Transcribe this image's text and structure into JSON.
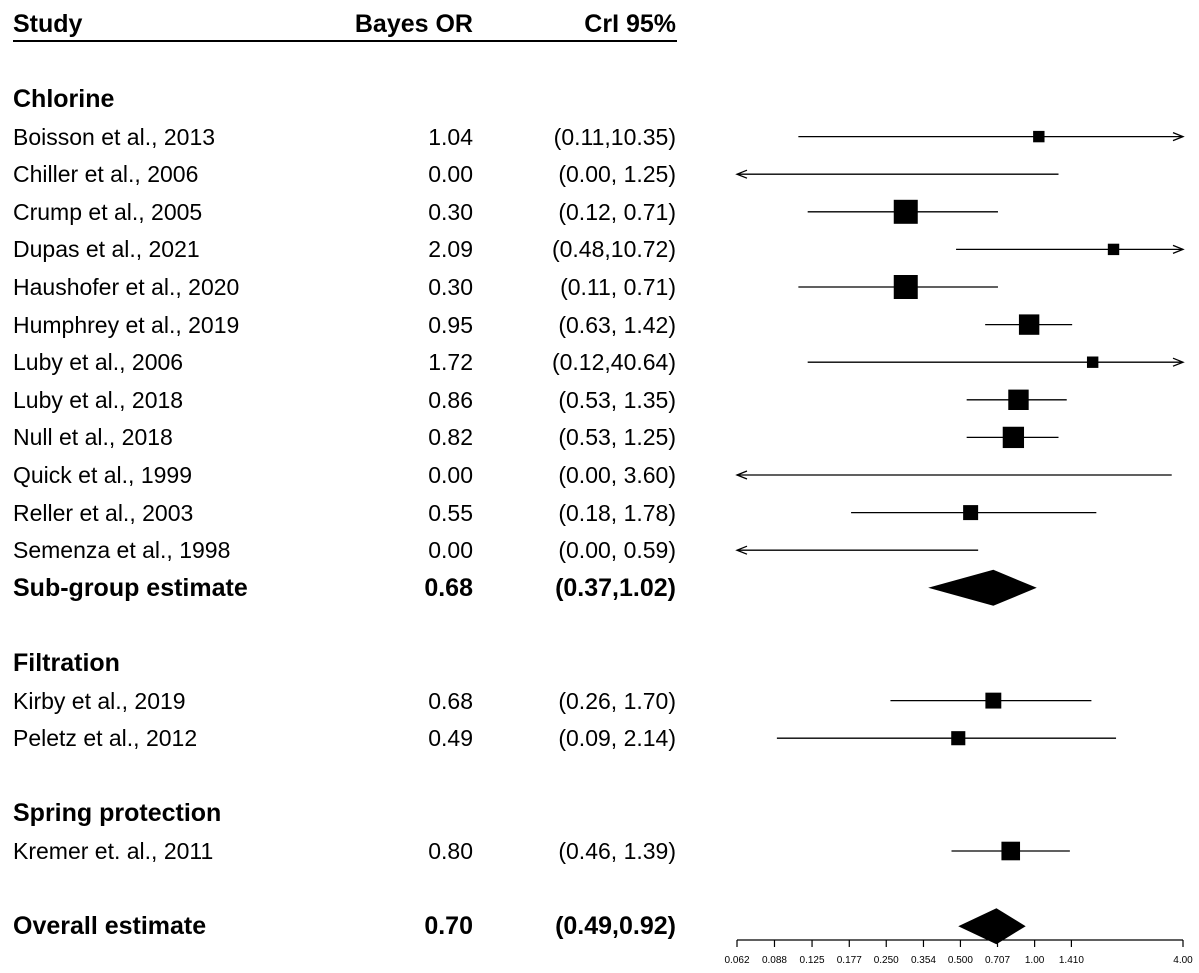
{
  "header": {
    "study": "Study",
    "or": "Bayes OR",
    "cri": "CrI 95%"
  },
  "rows": [
    {
      "study": "Chlorine",
      "or": "",
      "cri": "",
      "bold": true
    },
    {
      "study": "Boisson et al., 2013",
      "or": "1.04",
      "cri": "(0.11,10.35)"
    },
    {
      "study": "Chiller et al., 2006",
      "or": "0.00",
      "cri": "(0.00, 1.25)"
    },
    {
      "study": "Crump et al., 2005",
      "or": "0.30",
      "cri": "(0.12, 0.71)"
    },
    {
      "study": "Dupas et al., 2021",
      "or": "2.09",
      "cri": "(0.48,10.72)"
    },
    {
      "study": "Haushofer et al., 2020",
      "or": "0.30",
      "cri": "(0.11, 0.71)"
    },
    {
      "study": "Humphrey et al., 2019",
      "or": "0.95",
      "cri": "(0.63, 1.42)"
    },
    {
      "study": "Luby et al., 2006",
      "or": "1.72",
      "cri": "(0.12,40.64)"
    },
    {
      "study": "Luby et al., 2018",
      "or": "0.86",
      "cri": "(0.53, 1.35)"
    },
    {
      "study": "Null et al., 2018",
      "or": "0.82",
      "cri": "(0.53, 1.25)"
    },
    {
      "study": "Quick et al., 1999",
      "or": "0.00",
      "cri": "(0.00, 3.60)"
    },
    {
      "study": "Reller et al., 2003",
      "or": "0.55",
      "cri": "(0.18, 1.78)"
    },
    {
      "study": "Semenza et al., 1998",
      "or": "0.00",
      "cri": "(0.00, 0.59)"
    },
    {
      "study": "Sub-group estimate",
      "or": "0.68",
      "cri": "(0.37,1.02)",
      "bold": true
    },
    {
      "study": "",
      "or": "",
      "cri": ""
    },
    {
      "study": "Filtration",
      "or": "",
      "cri": "",
      "bold": true
    },
    {
      "study": "Kirby et al., 2019",
      "or": "0.68",
      "cri": "(0.26, 1.70)"
    },
    {
      "study": "Peletz et al., 2012",
      "or": "0.49",
      "cri": "(0.09, 2.14)"
    },
    {
      "study": "",
      "or": "",
      "cri": ""
    },
    {
      "study": "Spring protection",
      "or": "",
      "cri": "",
      "bold": true
    },
    {
      "study": "Kremer et. al., 2011",
      "or": "0.80",
      "cri": "(0.46, 1.39)"
    },
    {
      "study": "",
      "or": "",
      "cri": ""
    },
    {
      "study": "Overall estimate",
      "or": "0.70",
      "cri": "(0.49,0.92)",
      "bold": true
    }
  ],
  "chart_data": {
    "type": "forest",
    "scale": "log",
    "xlim": [
      0.062,
      4.0
    ],
    "ticks": [
      "0.062",
      "0.088",
      "0.125",
      "0.177",
      "0.250",
      "0.354",
      "0.500",
      "0.707",
      "1.00",
      "1.410",
      "4.00"
    ],
    "studies": [
      {
        "study": "Boisson et al., 2013",
        "est": 1.04,
        "lo": 0.11,
        "hi": 10.35,
        "weight": 0.3
      },
      {
        "study": "Chiller et al., 2006",
        "est": 0.0,
        "lo": 0.0,
        "hi": 1.25,
        "weight": 0
      },
      {
        "study": "Crump et al., 2005",
        "est": 0.3,
        "lo": 0.12,
        "hi": 0.71,
        "weight": 1.0
      },
      {
        "study": "Dupas et al., 2021",
        "est": 2.09,
        "lo": 0.48,
        "hi": 10.72,
        "weight": 0.3
      },
      {
        "study": "Haushofer et al., 2020",
        "est": 0.3,
        "lo": 0.11,
        "hi": 0.71,
        "weight": 1.0
      },
      {
        "study": "Humphrey et al., 2019",
        "est": 0.95,
        "lo": 0.63,
        "hi": 1.42,
        "weight": 0.8
      },
      {
        "study": "Luby et al., 2006",
        "est": 1.72,
        "lo": 0.12,
        "hi": 40.64,
        "weight": 0.3
      },
      {
        "study": "Luby et al., 2018",
        "est": 0.86,
        "lo": 0.53,
        "hi": 1.35,
        "weight": 0.8
      },
      {
        "study": "Null et al., 2018",
        "est": 0.82,
        "lo": 0.53,
        "hi": 1.25,
        "weight": 0.85
      },
      {
        "study": "Quick et al., 1999",
        "est": 0.0,
        "lo": 0.0,
        "hi": 3.6,
        "weight": 0
      },
      {
        "study": "Reller et al., 2003",
        "est": 0.55,
        "lo": 0.18,
        "hi": 1.78,
        "weight": 0.5
      },
      {
        "study": "Semenza et al., 1998",
        "est": 0.0,
        "lo": 0.0,
        "hi": 0.59,
        "weight": 0
      },
      {
        "study": "Sub-group estimate",
        "est": 0.68,
        "lo": 0.37,
        "hi": 1.02,
        "summary": true
      },
      {
        "study": "Kirby et al., 2019",
        "est": 0.68,
        "lo": 0.26,
        "hi": 1.7,
        "weight": 0.55
      },
      {
        "study": "Peletz et al., 2012",
        "est": 0.49,
        "lo": 0.09,
        "hi": 2.14,
        "weight": 0.45
      },
      {
        "study": "Kremer et. al., 2011",
        "est": 0.8,
        "lo": 0.46,
        "hi": 1.39,
        "weight": 0.7
      },
      {
        "study": "Overall estimate",
        "est": 0.7,
        "lo": 0.49,
        "hi": 0.92,
        "summary": true
      }
    ]
  }
}
